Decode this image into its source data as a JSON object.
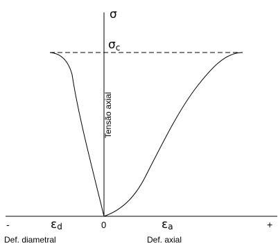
{
  "labels": {
    "sigma": "σ",
    "sigma_c_main": "σ",
    "sigma_c_sub": "c",
    "y_axis": "Tensão axial",
    "eps_d_main": "ε",
    "eps_d_sub": "d",
    "eps_a_main": "ε",
    "eps_a_sub": "a",
    "origin": "0",
    "minus": "-",
    "plus": "+",
    "x_left_caption": "Def. diametral",
    "x_right_caption": "Def. axial"
  },
  "colors": {
    "line": "#000000",
    "background": "#ffffff"
  }
}
